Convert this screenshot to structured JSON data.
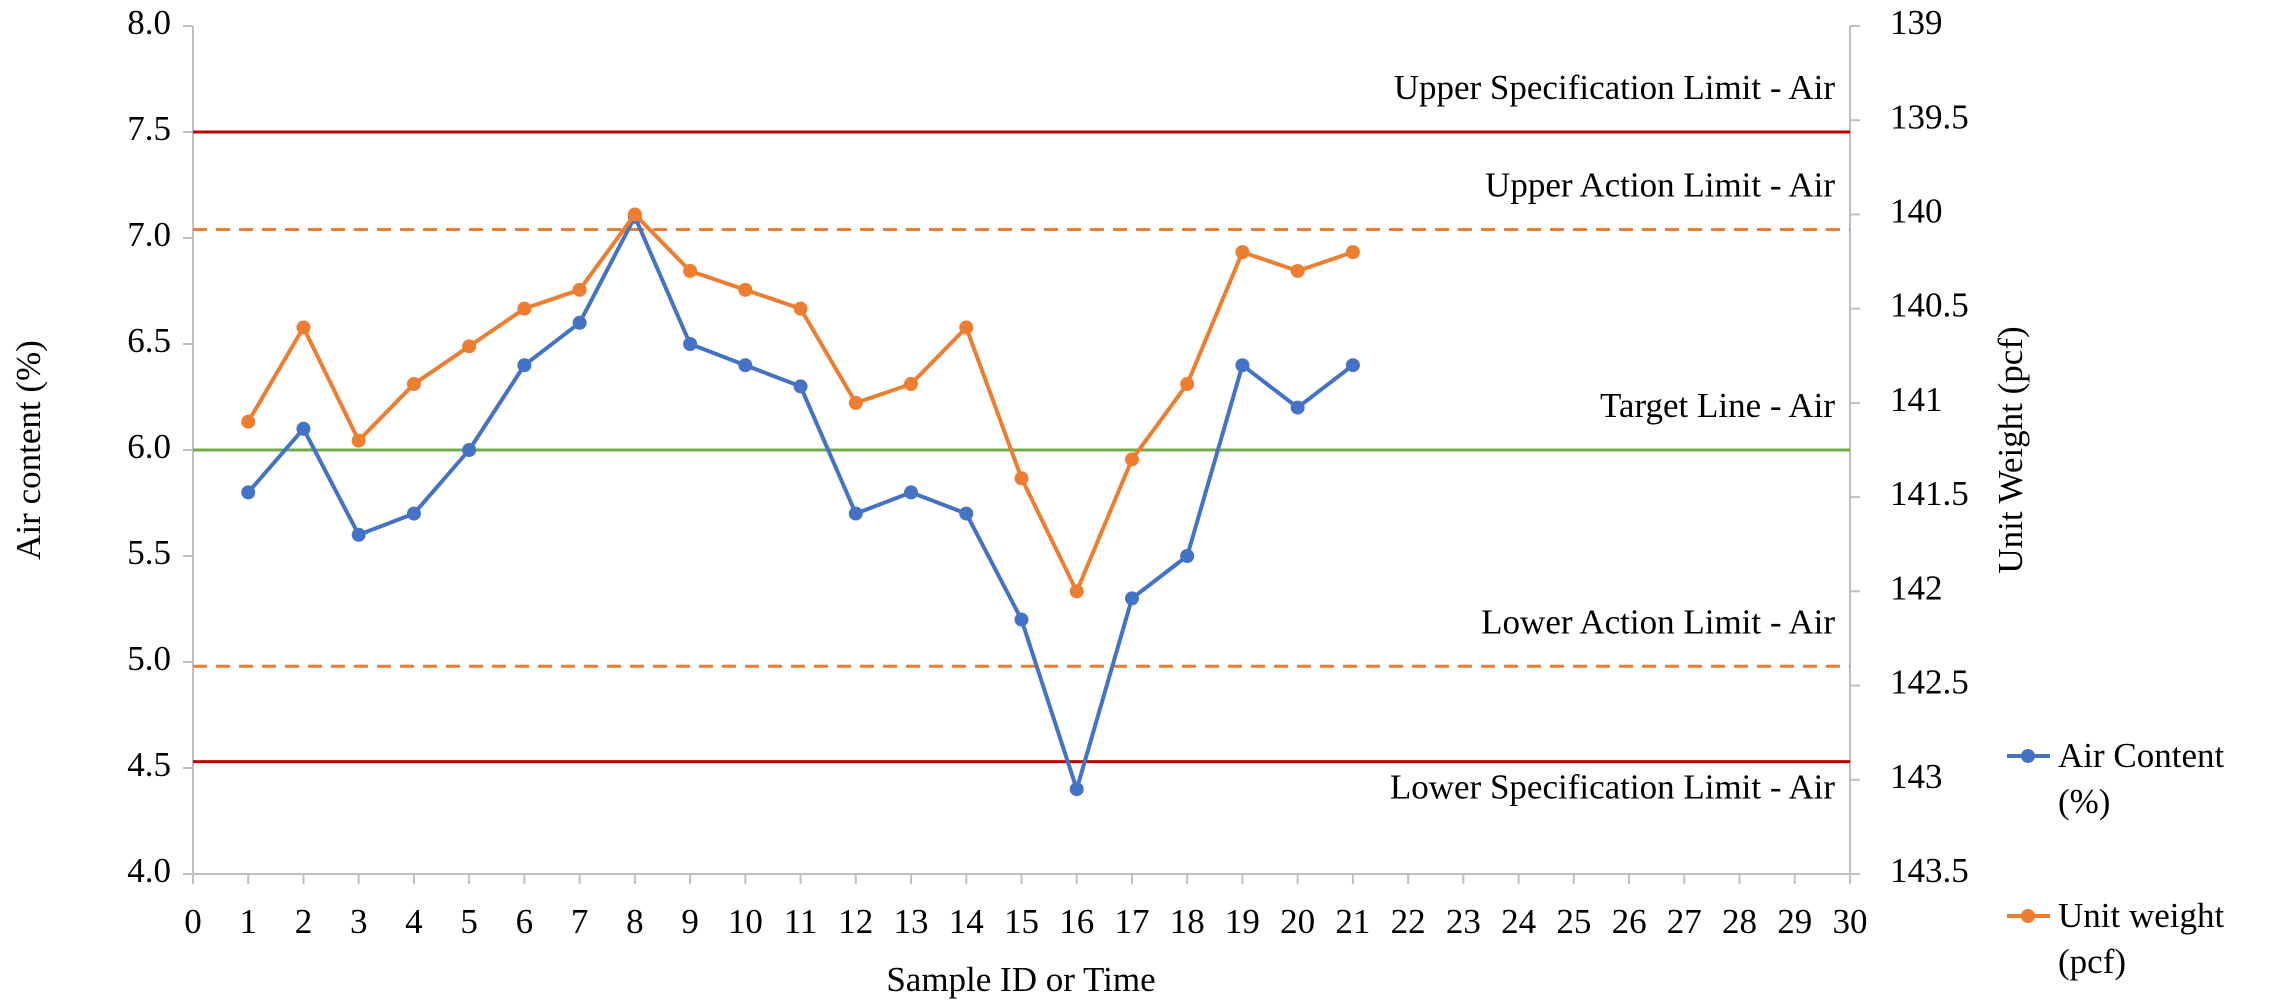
{
  "chart_data": {
    "type": "line",
    "xlabel": "Sample ID or Time",
    "ylabel": "Air content (%)",
    "y2label": "Unit Weight (pcf)",
    "xlim": [
      0,
      30
    ],
    "xticks": [
      0,
      1,
      2,
      3,
      4,
      5,
      6,
      7,
      8,
      9,
      10,
      11,
      12,
      13,
      14,
      15,
      16,
      17,
      18,
      19,
      20,
      21,
      22,
      23,
      24,
      25,
      26,
      27,
      28,
      29,
      30
    ],
    "ylim": [
      4,
      8
    ],
    "yticks": [
      {
        "value": 4,
        "label": "4.0"
      },
      4.5,
      {
        "value": 5,
        "label": "5.0"
      },
      5.5,
      {
        "value": 6,
        "label": "6.0"
      },
      6.5,
      {
        "value": 7,
        "label": "7.0"
      },
      7.5,
      {
        "value": 8,
        "label": "8.0"
      }
    ],
    "y2lim": [
      143.5,
      139
    ],
    "y2ticks": [
      139,
      139.5,
      140,
      140.5,
      141,
      141.5,
      142,
      142.5,
      143,
      143.5
    ],
    "x": [
      1,
      2,
      3,
      4,
      5,
      6,
      7,
      8,
      9,
      10,
      11,
      12,
      13,
      14,
      15,
      16,
      17,
      18,
      19,
      20,
      21
    ],
    "series": [
      {
        "name": "Air Content (%)",
        "color": "#4472c4",
        "values": [
          5.8,
          6.1,
          5.6,
          5.7,
          6.0,
          6.4,
          6.6,
          7.1,
          6.5,
          6.4,
          6.3,
          5.7,
          5.8,
          5.7,
          5.2,
          4.4,
          5.3,
          5.5,
          6.4,
          6.2,
          6.4
        ]
      },
      {
        "name": "Unit weight (pcf)",
        "color": "#ed7d31",
        "axis": "y2",
        "values": [
          141.1,
          140.6,
          141.2,
          140.9,
          140.7,
          140.5,
          140.4,
          140.0,
          140.3,
          140.4,
          140.5,
          141.0,
          140.9,
          140.6,
          141.4,
          142.0,
          141.3,
          140.9,
          140.2,
          140.3,
          140.2
        ]
      }
    ],
    "reference_lines": [
      {
        "label": "Upper Specification Limit - Air",
        "value": 7.5,
        "color": "#c00000",
        "dashed": false,
        "label_position": "above"
      },
      {
        "label": "Upper Action Limit - Air",
        "value": 7.04,
        "color": "#ed7d31",
        "dashed": true,
        "label_position": "above"
      },
      {
        "label": "Target Line - Air",
        "value": 6.0,
        "color": "#70ad47",
        "dashed": false,
        "label_position": "above"
      },
      {
        "label": "Lower Action Limit - Air",
        "value": 4.98,
        "color": "#ed7d31",
        "dashed": true,
        "label_position": "above"
      },
      {
        "label": "Lower Specification Limit - Air",
        "value": 4.53,
        "color": "#c00000",
        "dashed": false,
        "label_position": "below"
      }
    ],
    "legend": "right"
  }
}
